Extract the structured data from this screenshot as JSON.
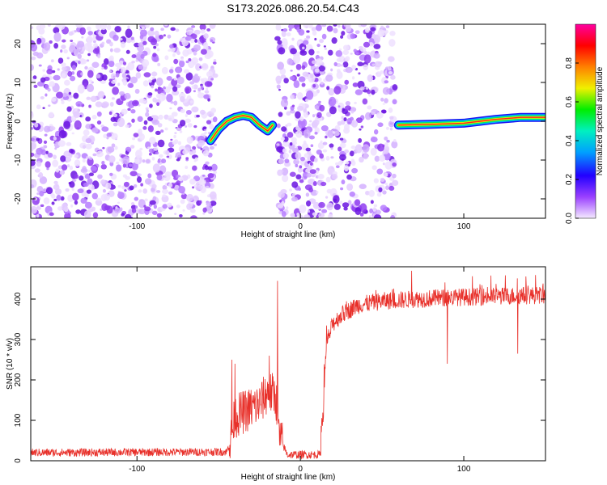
{
  "title": "S173.2026.086.20.54.C43",
  "colors": {
    "series": "#e8302a",
    "axis": "#000000",
    "noise": "#7a2bd9",
    "colormap": [
      "#f5eaff",
      "#9a40ff",
      "#2200ff",
      "#00a0ff",
      "#00f0c0",
      "#00ee00",
      "#f0f000",
      "#ff8000",
      "#ff0000",
      "#ff00a0"
    ]
  },
  "chart_data": [
    {
      "type": "heatmap",
      "name": "spectrogram",
      "xlabel": "Height of straight line (km)",
      "ylabel": "Frequency (Hz)",
      "xlim": [
        -165,
        150
      ],
      "ylim": [
        -25,
        25
      ],
      "xticks": [
        -100,
        0,
        100
      ],
      "xtick_labels": [
        "-100",
        "0",
        "100"
      ],
      "yticks": [
        -20,
        -10,
        0,
        10,
        20
      ],
      "ytick_labels": [
        "-20",
        "-10",
        "0",
        "10",
        "20"
      ],
      "colorbar": {
        "label": "Normalized spectral amplitude",
        "range": [
          0,
          1
        ],
        "ticks": [
          0.0,
          0.2,
          0.4,
          0.6,
          0.8
        ],
        "tick_labels": [
          "0.0",
          "0.2",
          "0.4",
          "0.6",
          "0.8"
        ]
      },
      "noise_regions_x": [
        [
          -165,
          -52
        ],
        [
          -14,
          58
        ]
      ],
      "signal_tracks": [
        {
          "segment": "left",
          "points": [
            [
              -55,
              -5
            ],
            [
              -50,
              -2
            ],
            [
              -45,
              0
            ],
            [
              -40,
              1
            ],
            [
              -35,
              1.5
            ],
            [
              -30,
              1
            ],
            [
              -25,
              -1
            ],
            [
              -20,
              -2.5
            ],
            [
              -17,
              -1
            ]
          ]
        },
        {
          "segment": "right",
          "points": [
            [
              60,
              -1
            ],
            [
              80,
              -0.8
            ],
            [
              100,
              -0.5
            ],
            [
              110,
              0
            ],
            [
              120,
              0.5
            ],
            [
              135,
              1
            ],
            [
              150,
              1
            ]
          ]
        }
      ]
    },
    {
      "type": "line",
      "name": "snr",
      "xlabel": "Height of straight line (km)",
      "ylabel": "SNR (10 * v/v)",
      "xlim": [
        -165,
        150
      ],
      "ylim": [
        0,
        480
      ],
      "xticks": [
        -100,
        0,
        100
      ],
      "xtick_labels": [
        "-100",
        "0",
        "100"
      ],
      "yticks": [
        0,
        100,
        200,
        300,
        400
      ],
      "ytick_labels": [
        "0",
        "100",
        "200",
        "300",
        "400"
      ],
      "baseline_profile": [
        [
          -165,
          20
        ],
        [
          -45,
          22
        ],
        [
          -42,
          60
        ],
        [
          -40,
          110
        ],
        [
          -35,
          120
        ],
        [
          -30,
          130
        ],
        [
          -25,
          140
        ],
        [
          -20,
          170
        ],
        [
          -15,
          160
        ],
        [
          -13,
          60
        ],
        [
          -8,
          15
        ],
        [
          12,
          15
        ],
        [
          14,
          150
        ],
        [
          16,
          290
        ],
        [
          20,
          340
        ],
        [
          25,
          360
        ],
        [
          35,
          385
        ],
        [
          50,
          395
        ],
        [
          70,
          400
        ],
        [
          100,
          405
        ],
        [
          150,
          410
        ]
      ],
      "spikes": [
        [
          -14,
          445
        ],
        [
          -42,
          250
        ],
        [
          -40,
          240
        ],
        [
          -19,
          260
        ],
        [
          68,
          470
        ],
        [
          90,
          240
        ],
        [
          133,
          265
        ]
      ]
    }
  ]
}
